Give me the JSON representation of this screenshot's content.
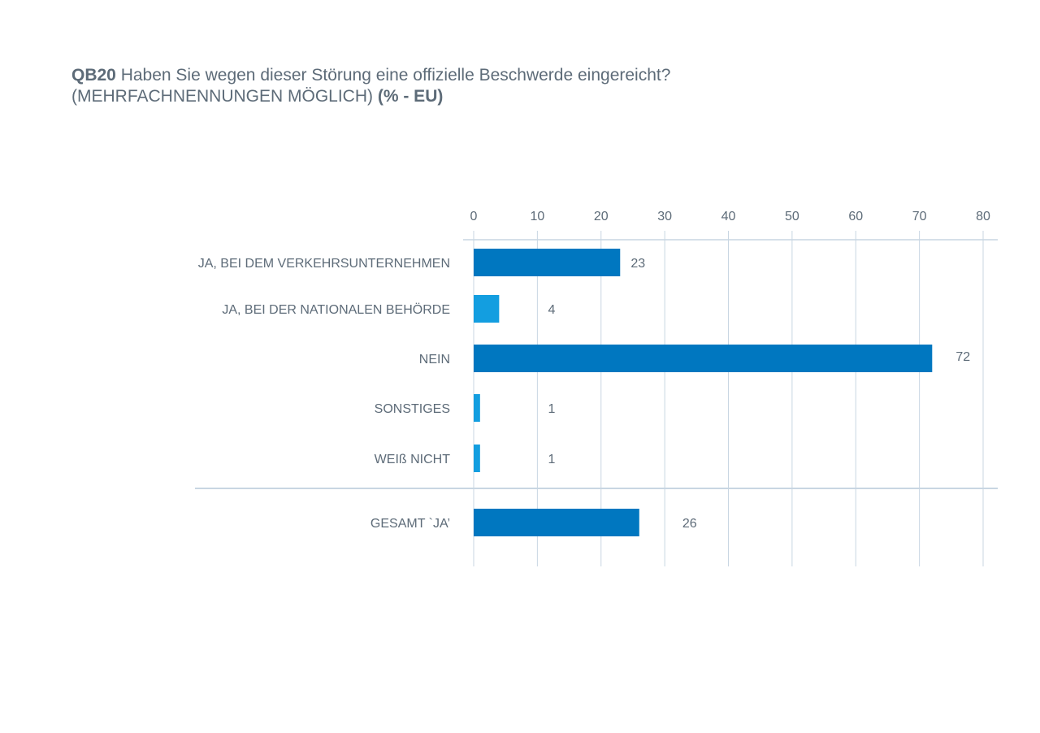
{
  "title": {
    "code": "QB20",
    "question": "Haben Sie wegen dieser Störung eine offizielle Beschwerde eingereicht?",
    "qualifier": "(MEHRFACHNENNUNGEN MÖGLICH)",
    "unit": "(% - EU)"
  },
  "colors": {
    "primary_bar": "#0077c0",
    "light_bar": "#139ee0",
    "grid": "#c8d6e2",
    "text": "#5d6b78"
  },
  "chart_data": {
    "type": "bar",
    "orientation": "horizontal",
    "categories": [
      "JA, BEI DEM VERKEHRSUNTERNEHMEN",
      "JA, BEI DER NATIONALEN BEHÖRDE",
      "NEIN",
      "SONSTIGES",
      "WEIß NICHT",
      "GESAMT `JA’"
    ],
    "values": [
      23,
      4,
      72,
      1,
      1,
      26
    ],
    "data_labels": [
      "23",
      "4",
      "72",
      "1",
      "1",
      "26"
    ],
    "bar_colors": [
      "#0077c0",
      "#139ee0",
      "#0077c0",
      "#139ee0",
      "#139ee0",
      "#0077c0"
    ],
    "xlim": [
      0,
      80
    ],
    "x_ticks": [
      0,
      10,
      20,
      30,
      40,
      50,
      60,
      70,
      80
    ],
    "grid": true,
    "x_axis_position": "top"
  }
}
